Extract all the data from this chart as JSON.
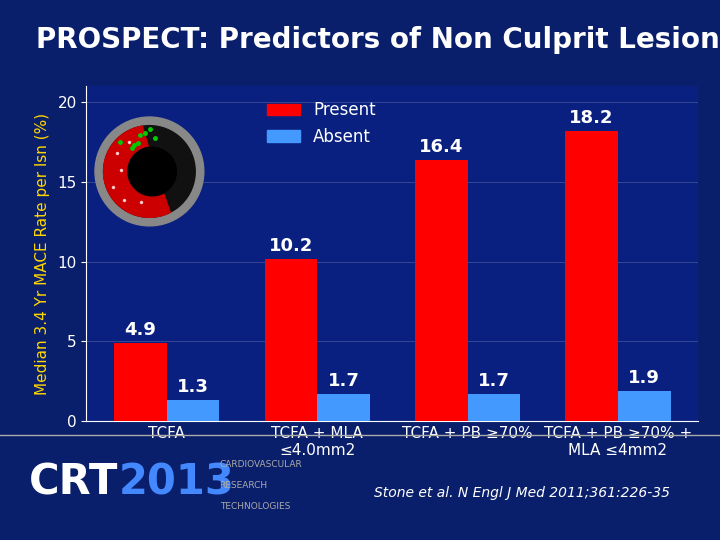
{
  "title": "PROSPECT: Predictors of Non Culprit Lesion Events",
  "title_fontsize": 20,
  "title_color": "#FFFFFF",
  "background_color": "#0a1f6b",
  "plot_bg_color": "#0a2080",
  "ylabel": "Median 3.4 Yr MACE Rate per lsn (%)",
  "ylabel_color": "#FFD700",
  "ylabel_fontsize": 11,
  "ylim": [
    0,
    21
  ],
  "yticks": [
    0,
    5,
    10,
    15,
    20
  ],
  "categories": [
    "TCFA",
    "TCFA + MLA\n≤4.0mm2",
    "TCFA + PB ≥70%",
    "TCFA + PB ≥70% +\nMLA ≤4mm2"
  ],
  "present_values": [
    4.9,
    10.2,
    16.4,
    18.2
  ],
  "absent_values": [
    1.3,
    1.7,
    1.7,
    1.9
  ],
  "present_color": "#FF0000",
  "absent_color": "#4499FF",
  "bar_width": 0.35,
  "legend_present": "Present",
  "legend_absent": "Absent",
  "tick_color": "#FFFFFF",
  "tick_fontsize": 11,
  "value_label_color": "#FFFFFF",
  "value_label_fontsize": 13,
  "footer_text": "Stone et al. N Engl J Med 2011;361:226-35",
  "footer_color": "#FFFFFF",
  "footer_fontsize": 10,
  "grid_color": "#FFFFFF",
  "spine_color": "#FFFFFF"
}
